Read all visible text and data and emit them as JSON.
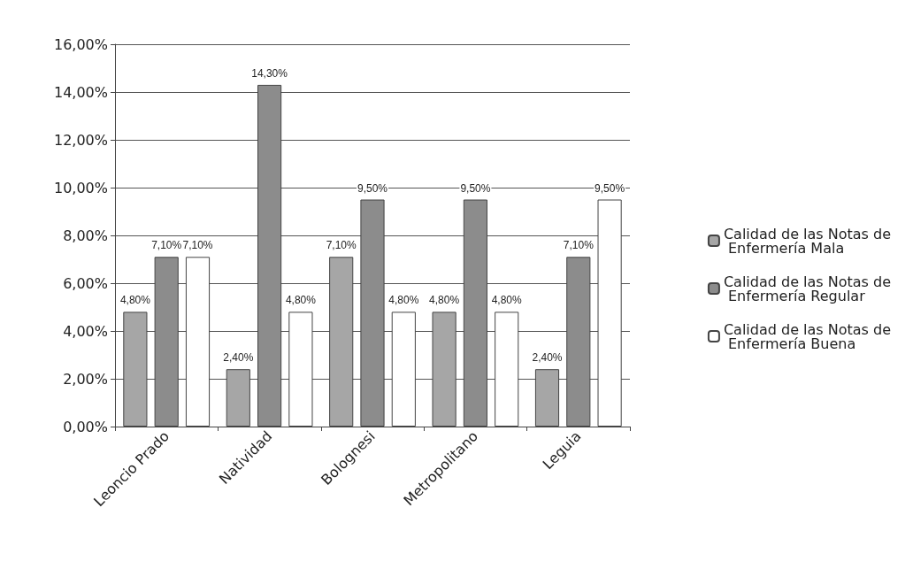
{
  "chart_data": {
    "type": "bar",
    "categories": [
      "Leoncio Prado",
      "Natividad",
      "Bolognesi",
      "Metropolitano",
      "Leguia"
    ],
    "series": [
      {
        "name": "Calidad de las Notas de Enfermería Mala",
        "color": "#a6a6a6",
        "values": [
          4.8,
          2.4,
          7.1,
          4.8,
          2.4
        ],
        "value_labels": [
          "4,80%",
          "2,40%",
          "7,10%",
          "4,80%",
          "2,40%"
        ]
      },
      {
        "name": "Calidad de las Notas de Enfermería Regular",
        "color": "#8c8c8c",
        "values": [
          7.1,
          14.3,
          9.5,
          9.5,
          7.1
        ],
        "value_labels": [
          "7,10%",
          "14,30%",
          "9,50%",
          "9,50%",
          "7,10%"
        ]
      },
      {
        "name": "Calidad de las Notas de Enfermería Buena",
        "color": "#ffffff",
        "values": [
          7.1,
          4.8,
          4.8,
          4.8,
          9.5
        ],
        "value_labels": [
          "7,10%",
          "4,80%",
          "4,80%",
          "4,80%",
          "9,50%"
        ]
      }
    ],
    "ylim": [
      0,
      16
    ],
    "yticks": [
      {
        "value": 0,
        "label": "0,00%"
      },
      {
        "value": 2,
        "label": "2,00%"
      },
      {
        "value": 4,
        "label": "4,00%"
      },
      {
        "value": 6,
        "label": "6,00%"
      },
      {
        "value": 8,
        "label": "8,00%"
      },
      {
        "value": 10,
        "label": "10,00%"
      },
      {
        "value": 12,
        "label": "12,00%"
      },
      {
        "value": 14,
        "label": "14,00%"
      },
      {
        "value": 16,
        "label": "16,00%"
      }
    ],
    "grid": true,
    "legend": "right"
  }
}
